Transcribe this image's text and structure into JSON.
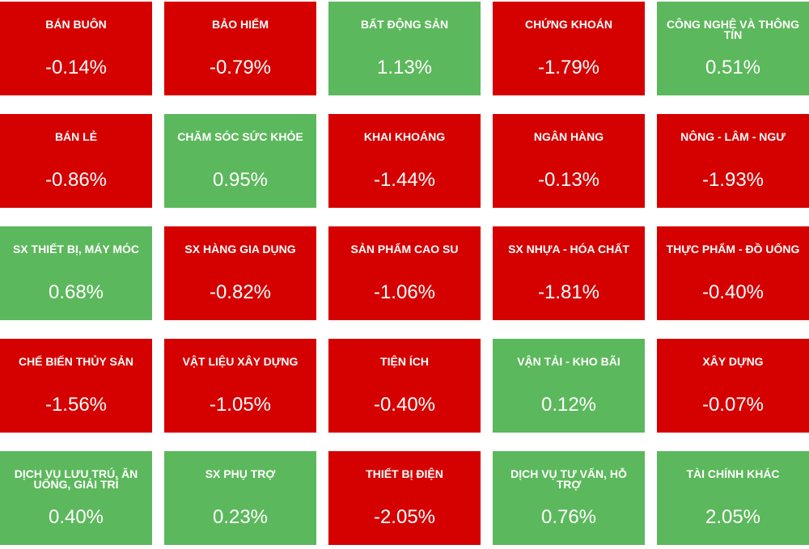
{
  "tiles": [
    {
      "label": "BÁN BUÔN",
      "value": "-0.14%",
      "color": "#d50000"
    },
    {
      "label": "BẢO HIỂM",
      "value": "-0.79%",
      "color": "#d50000"
    },
    {
      "label": "BẤT ĐỘNG SẢN",
      "value": "1.13%",
      "color": "#5cb85c"
    },
    {
      "label": "CHỨNG KHOÁN",
      "value": "-1.79%",
      "color": "#d50000"
    },
    {
      "label": "CÔNG NGHỆ VÀ THÔNG TIN",
      "value": "0.51%",
      "color": "#5cb85c"
    },
    {
      "label": "BÁN LẺ",
      "value": "-0.86%",
      "color": "#d50000"
    },
    {
      "label": "CHĂM SÓC SỨC KHỎE",
      "value": "0.95%",
      "color": "#5cb85c"
    },
    {
      "label": "KHAI KHOÁNG",
      "value": "-1.44%",
      "color": "#d50000"
    },
    {
      "label": "NGÂN HÀNG",
      "value": "-0.13%",
      "color": "#d50000"
    },
    {
      "label": "NÔNG - LÂM - NGƯ",
      "value": "-1.93%",
      "color": "#d50000"
    },
    {
      "label": "SX THIẾT BỊ, MÁY MÓC",
      "value": "0.68%",
      "color": "#5cb85c"
    },
    {
      "label": "SX HÀNG GIA DỤNG",
      "value": "-0.82%",
      "color": "#d50000"
    },
    {
      "label": "SẢN PHẨM CAO SU",
      "value": "-1.06%",
      "color": "#d50000"
    },
    {
      "label": "SX NHỰA - HÓA CHẤT",
      "value": "-1.81%",
      "color": "#d50000"
    },
    {
      "label": "THỰC PHẨM - ĐỒ UỐNG",
      "value": "-0.40%",
      "color": "#d50000"
    },
    {
      "label": "CHẾ BIẾN THỦY SẢN",
      "value": "-1.56%",
      "color": "#d50000"
    },
    {
      "label": "VẬT LIỆU XÂY DỰNG",
      "value": "-1.05%",
      "color": "#d50000"
    },
    {
      "label": "TIỆN ÍCH",
      "value": "-0.40%",
      "color": "#d50000"
    },
    {
      "label": "VẬN TẢI - KHO BÃI",
      "value": "0.12%",
      "color": "#5cb85c"
    },
    {
      "label": "XÂY DỰNG",
      "value": "-0.07%",
      "color": "#d50000"
    },
    {
      "label": "DỊCH VỤ LƯU TRÚ, ĂN UỐNG, GIẢI TRÍ",
      "value": "0.40%",
      "color": "#5cb85c"
    },
    {
      "label": "SX PHỤ TRỢ",
      "value": "0.23%",
      "color": "#5cb85c"
    },
    {
      "label": "THIẾT BỊ ĐIỆN",
      "value": "-2.05%",
      "color": "#d50000"
    },
    {
      "label": "DỊCH VỤ TƯ VẤN, HỖ TRỢ",
      "value": "0.76%",
      "color": "#5cb85c"
    },
    {
      "label": "TÀI CHÍNH KHÁC",
      "value": "2.05%",
      "color": "#5cb85c"
    }
  ]
}
